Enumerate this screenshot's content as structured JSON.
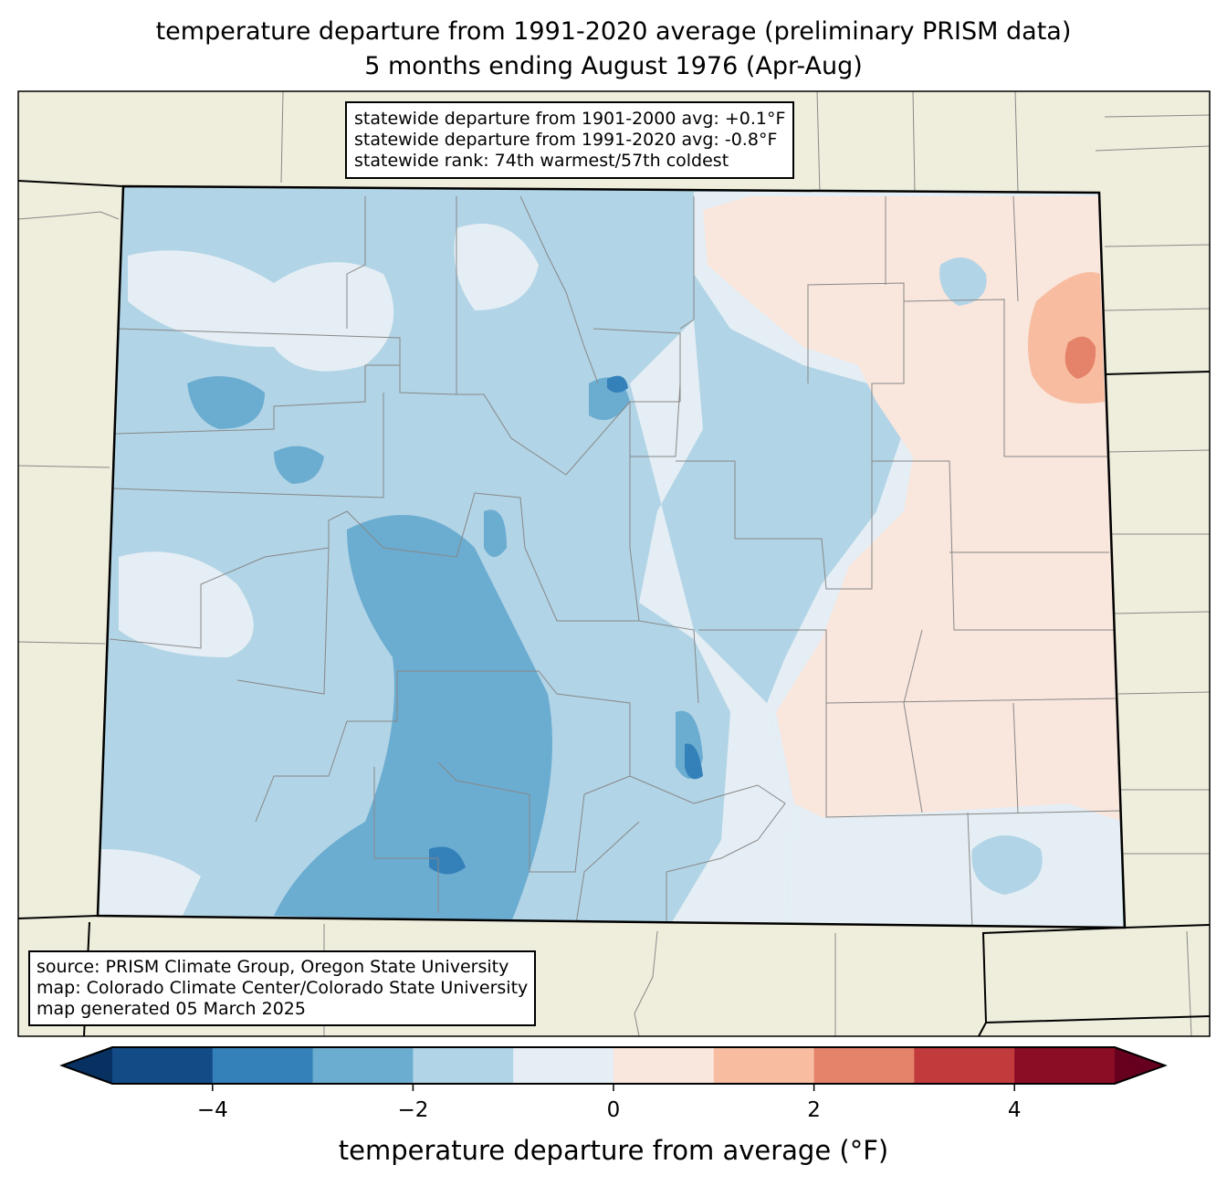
{
  "title": {
    "line1": "temperature departure from 1991-2020 average (preliminary PRISM data)",
    "line2": "5 months ending August 1976 (Apr-Aug)"
  },
  "stats": [
    "statewide departure from 1901-2000 avg: +0.1°F",
    "statewide departure from 1991-2020 avg: -0.8°F",
    "statewide rank: 74th warmest/57th coldest"
  ],
  "source": [
    "source: PRISM Climate Group, Oregon State University",
    "map: Colorado Climate Center/Colorado State University",
    "map generated 05 March 2025"
  ],
  "colorbar": {
    "label": "temperature departure from average (°F)",
    "range": [
      -5,
      5
    ],
    "bin_colors": [
      "#134b87",
      "#3480b9",
      "#6bacd1",
      "#b1d4e6",
      "#e5eef4",
      "#f9e6dd",
      "#f8bda1",
      "#e5826a",
      "#c13a3c",
      "#8a0c25"
    ],
    "under_color": "#083060",
    "over_color": "#67001f",
    "ticks": [
      {
        "value": -4,
        "label": "−4"
      },
      {
        "value": -2,
        "label": "−2"
      },
      {
        "value": 0,
        "label": "0"
      },
      {
        "value": 2,
        "label": "2"
      },
      {
        "value": 4,
        "label": "4"
      }
    ]
  },
  "colors": {
    "land": "#efeedc",
    "colorado_base": "#b1d4e6"
  }
}
